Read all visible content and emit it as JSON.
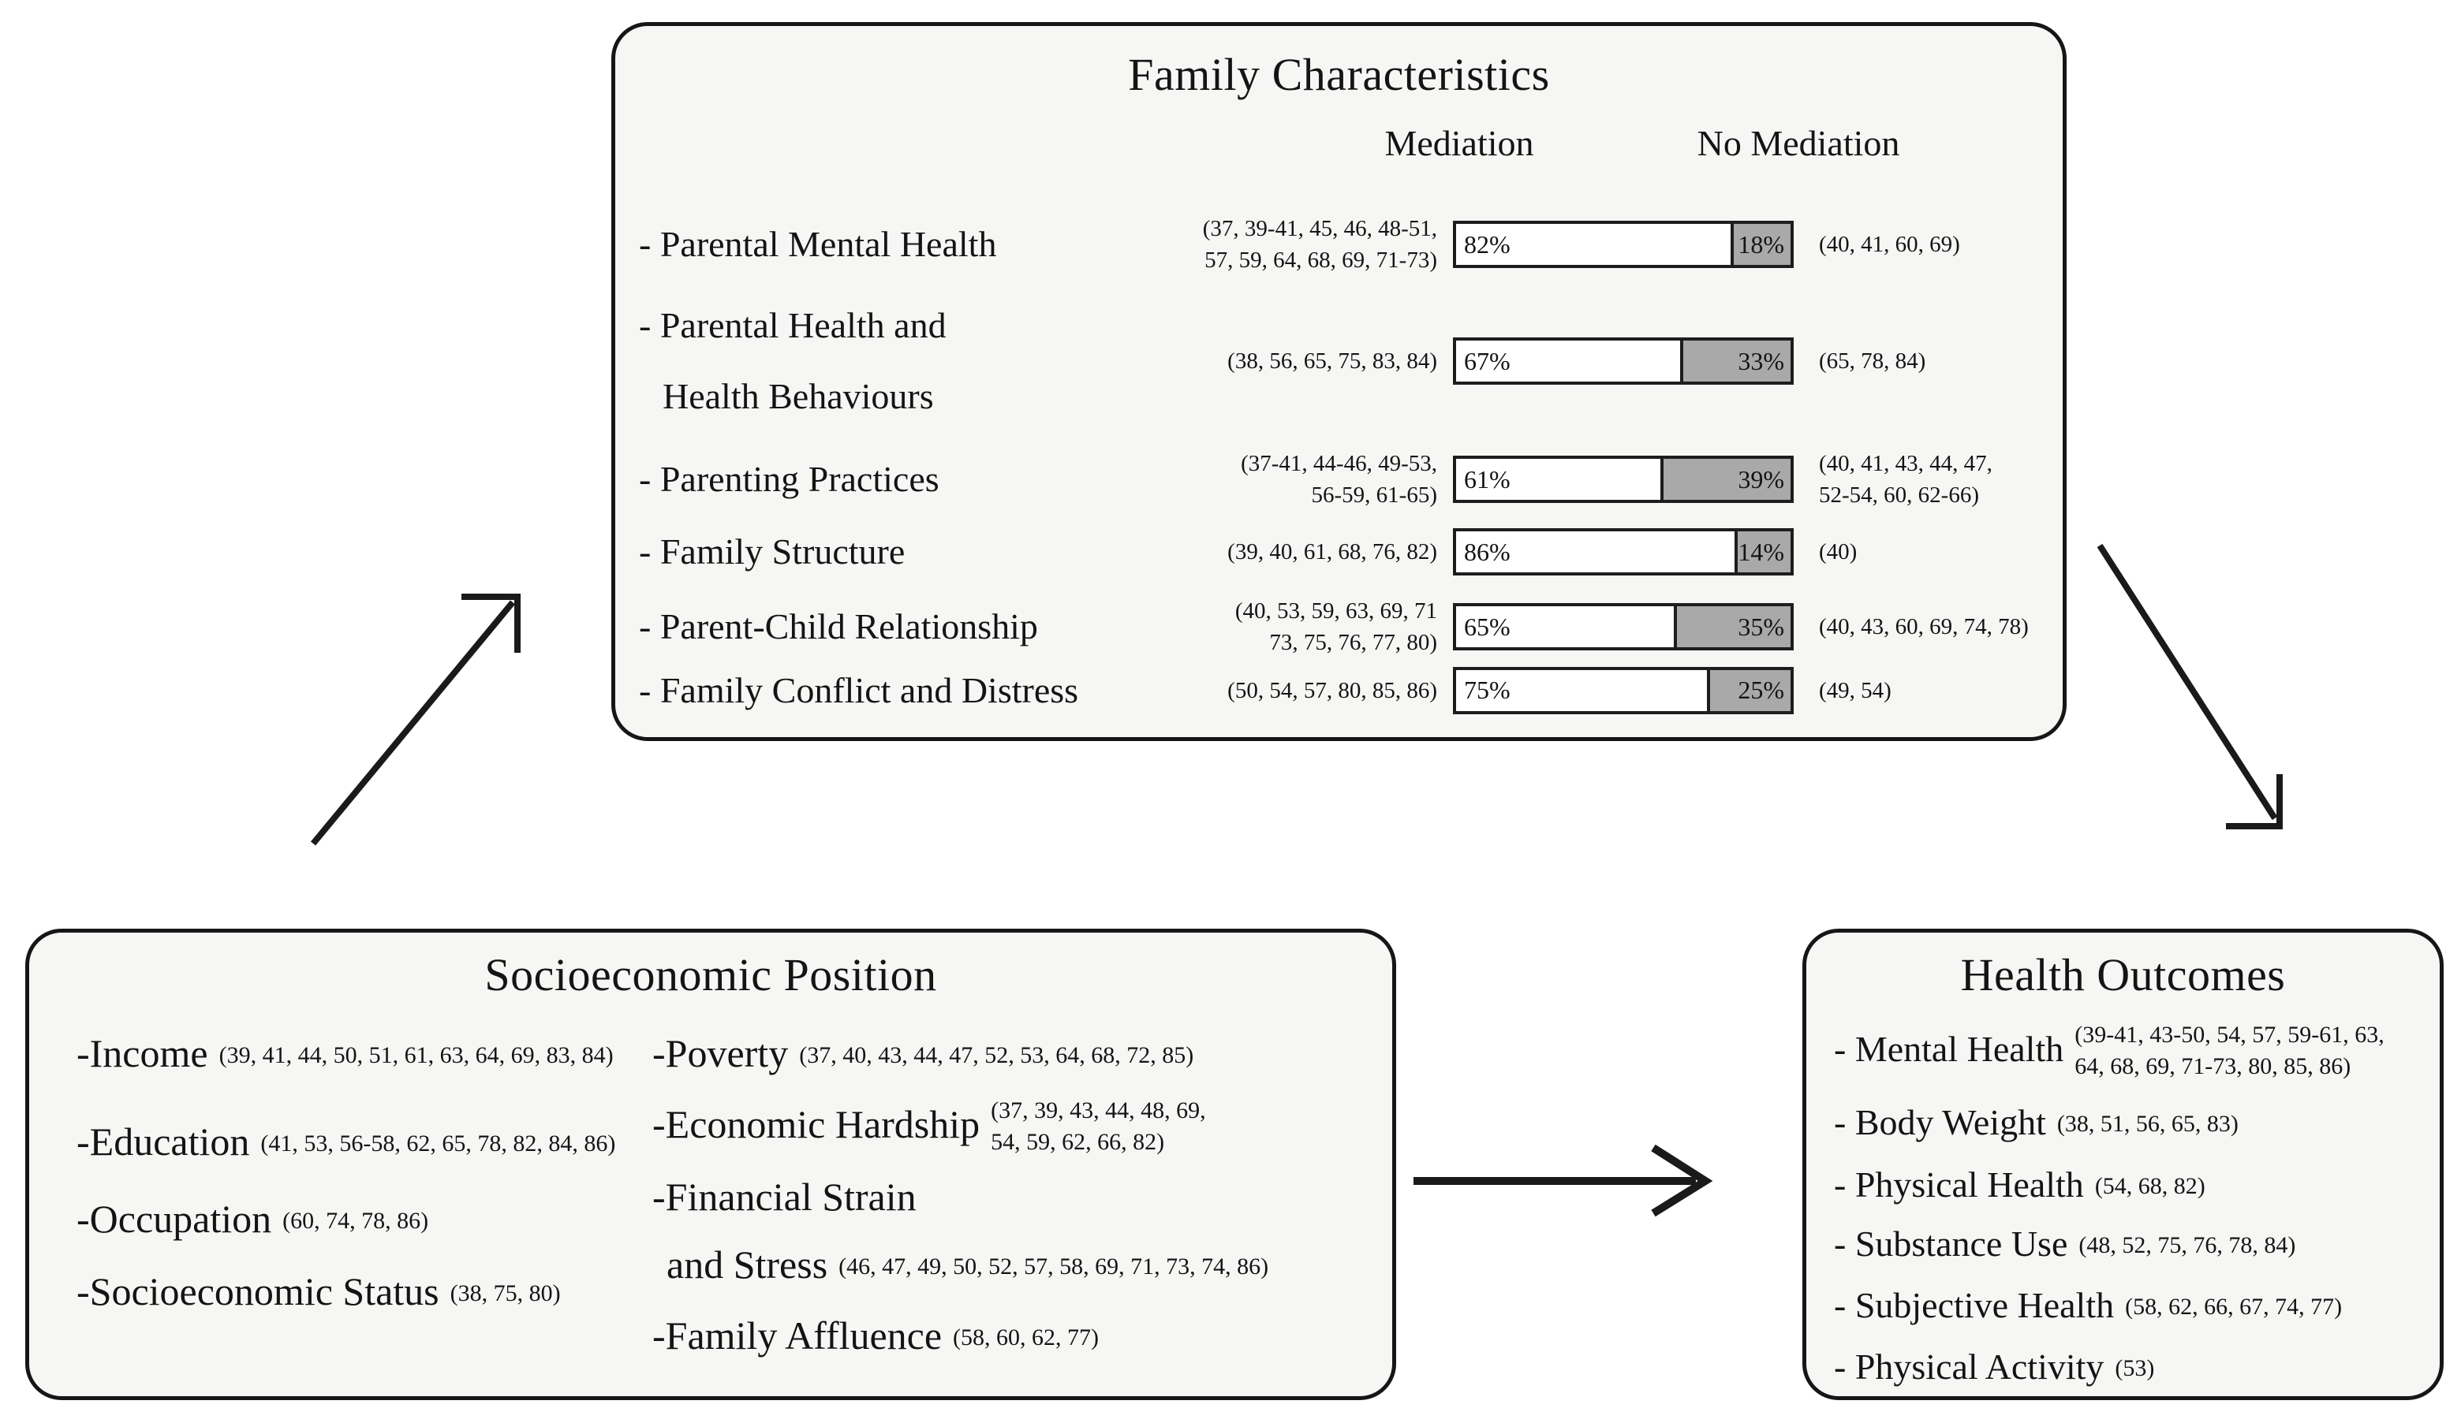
{
  "colors": {
    "bar_fill_gray": "#a9a9a9",
    "box_background": "#f6f6f5",
    "line_black": "#161616"
  },
  "family": {
    "title": "Family Characteristics",
    "columns": {
      "mediation": "Mediation",
      "no_mediation": "No Mediation"
    },
    "rows": [
      {
        "label_lines": [
          "- Parental Mental Health"
        ],
        "cite_left_lines": [
          "(37, 39-41, 45, 46, 48-51,",
          "57, 59, 64, 68, 69, 71-73)"
        ],
        "mediation_value": 82,
        "mediation_label": "82%",
        "no_mediation_label": "18%",
        "cite_right_lines": [
          "(40, 41, 60, 69)"
        ]
      },
      {
        "label_lines": [
          "- Parental Health and",
          "Health Behaviours"
        ],
        "cite_left_lines": [
          "(38, 56, 65, 75, 83, 84)"
        ],
        "mediation_value": 67,
        "mediation_label": "67%",
        "no_mediation_label": "33%",
        "cite_right_lines": [
          "(65, 78, 84)"
        ]
      },
      {
        "label_lines": [
          "- Parenting Practices"
        ],
        "cite_left_lines": [
          "(37-41, 44-46, 49-53,",
          "56-59, 61-65)"
        ],
        "mediation_value": 61,
        "mediation_label": "61%",
        "no_mediation_label": "39%",
        "cite_right_lines": [
          "(40, 41, 43, 44, 47,",
          "52-54, 60, 62-66)"
        ]
      },
      {
        "label_lines": [
          "- Family Structure"
        ],
        "cite_left_lines": [
          "(39, 40, 61, 68, 76, 82)"
        ],
        "mediation_value": 86,
        "mediation_label": "86%",
        "no_mediation_label": "14%",
        "cite_right_lines": [
          "(40)"
        ]
      },
      {
        "label_lines": [
          "- Parent-Child Relationship"
        ],
        "cite_left_lines": [
          "(40, 53, 59, 63, 69, 71",
          "73, 75, 76, 77, 80)"
        ],
        "mediation_value": 65,
        "mediation_label": "65%",
        "no_mediation_label": "35%",
        "cite_right_lines": [
          "(40, 43, 60, 69, 74, 78)"
        ]
      },
      {
        "label_lines": [
          "- Family Conflict and Distress"
        ],
        "cite_left_lines": [
          "(50, 54, 57, 80, 85, 86)"
        ],
        "mediation_value": 75,
        "mediation_label": "75%",
        "no_mediation_label": "25%",
        "cite_right_lines": [
          "(49, 54)"
        ]
      }
    ]
  },
  "sep": {
    "title": "Socioeconomic Position",
    "items_left": [
      {
        "label": "-Income",
        "cite": "(39, 41, 44, 50, 51, 61, 63, 64, 69, 83, 84)"
      },
      {
        "label": "-Education",
        "cite": "(41, 53, 56-58, 62, 65, 78, 82, 84, 86)"
      },
      {
        "label": "-Occupation",
        "cite": "(60, 74, 78, 86)"
      },
      {
        "label": "-Socioeconomic Status",
        "cite": "(38, 75, 80)"
      }
    ],
    "items_right": [
      {
        "label": "-Poverty",
        "cite": "(37, 40, 43, 44, 47, 52, 53, 64, 68, 72, 85)"
      },
      {
        "label": "-Economic Hardship",
        "cite_lines": [
          "(37, 39, 43, 44, 48, 69,",
          "54, 59, 62, 66, 82)"
        ]
      },
      {
        "label": "-Financial Strain",
        "cite": ""
      },
      {
        "label": "and Stress",
        "cite": "(46, 47, 49, 50, 52, 57, 58, 69, 71, 73, 74, 86)"
      },
      {
        "label": "-Family Affluence",
        "cite": "(58, 60, 62, 77)"
      }
    ]
  },
  "health": {
    "title": "Health Outcomes",
    "items": [
      {
        "label": "- Mental Health",
        "cite_lines": [
          "(39-41, 43-50, 54, 57, 59-61, 63,",
          "64, 68, 69, 71-73, 80, 85, 86)"
        ]
      },
      {
        "label": "- Body Weight",
        "cite": "(38, 51, 56, 65, 83)"
      },
      {
        "label": "- Physical Health",
        "cite": "(54, 68, 82)"
      },
      {
        "label": "- Substance Use",
        "cite": "(48, 52, 75, 76, 78, 84)"
      },
      {
        "label": "- Subjective Health",
        "cite": "(58, 62, 66, 67, 74, 77)"
      },
      {
        "label": "- Physical Activity",
        "cite": "(53)"
      }
    ]
  }
}
